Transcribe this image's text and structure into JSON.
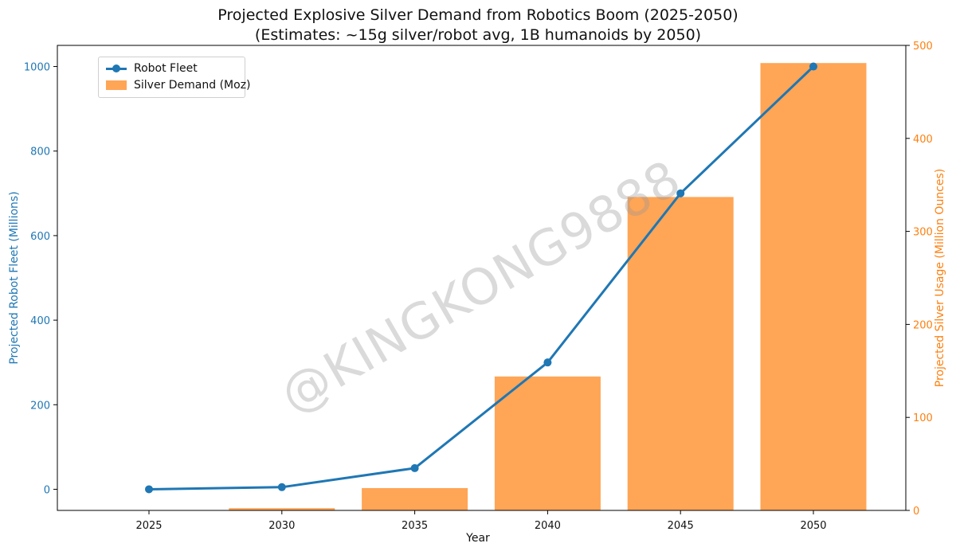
{
  "chart_data": {
    "type": "bar+line",
    "title": "Projected Explosive Silver Demand from Robotics Boom (2025-2050)",
    "subtitle": "(Estimates: ~15g silver/robot avg, 1B humanoids by 2050)",
    "xlabel": "Year",
    "categories": [
      "2025",
      "2030",
      "2035",
      "2040",
      "2045",
      "2050"
    ],
    "series": [
      {
        "name": "Robot Fleet",
        "type": "line",
        "axis": "left",
        "color": "#1f77b4",
        "values": [
          0,
          5,
          50,
          300,
          700,
          1000
        ]
      },
      {
        "name": "Silver Demand (Moz)",
        "type": "bar",
        "axis": "right",
        "color": "#ff7f0e",
        "values": [
          0,
          2.4,
          24,
          144,
          337,
          481
        ]
      }
    ],
    "y_left": {
      "label": "Projected Robot Fleet (Millions)",
      "ylim": [
        -50,
        1050
      ],
      "ticks": [
        0,
        200,
        400,
        600,
        800,
        1000
      ],
      "color": "#1f77b4"
    },
    "y_right": {
      "label": "Projected Silver Usage (Million Ounces)",
      "ylim": [
        0,
        500
      ],
      "ticks": [
        0,
        100,
        200,
        300,
        400,
        500
      ],
      "color": "#ff7f0e"
    },
    "legend": {
      "position": "top-left",
      "entries": [
        "Robot Fleet",
        "Silver Demand (Moz)"
      ]
    },
    "grid": false,
    "watermark": "@KINGKONG9888"
  }
}
